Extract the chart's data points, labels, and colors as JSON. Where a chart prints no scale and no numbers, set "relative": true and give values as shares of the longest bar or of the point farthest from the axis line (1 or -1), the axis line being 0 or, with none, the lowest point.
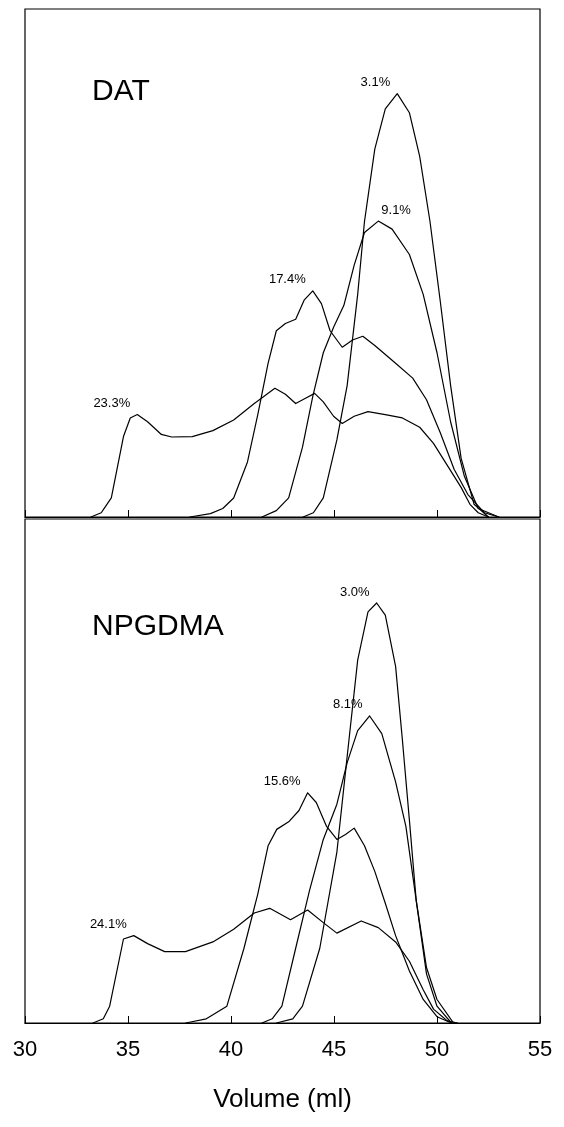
{
  "chart_data": [
    {
      "type": "line",
      "title": "DAT",
      "relative": true,
      "xlim": [
        30,
        55
      ],
      "xticks": [
        30,
        35,
        40,
        45,
        50,
        55
      ],
      "tick_labels": false,
      "grid": false,
      "legend": false,
      "marker": "none",
      "line_style": "solid",
      "series": [
        {
          "name": "23.3%",
          "color": "#000000",
          "x": [
            33.2,
            33.7,
            34.19,
            34.78,
            35.11,
            35.45,
            35.95,
            36.62,
            37.12,
            38.12,
            39.12,
            40.13,
            41.13,
            42.13,
            42.64,
            43.14,
            43.64,
            44.06,
            44.48,
            44.98,
            45.4,
            45.98,
            46.65,
            47.49,
            48.32,
            49.16,
            49.83,
            50.5,
            51.17,
            51.6,
            52.0,
            52.5
          ],
          "values": [
            0,
            0.01,
            0.045,
            0.19,
            0.234,
            0.242,
            0.225,
            0.195,
            0.189,
            0.19,
            0.204,
            0.229,
            0.268,
            0.304,
            0.29,
            0.268,
            0.281,
            0.292,
            0.272,
            0.238,
            0.221,
            0.238,
            0.249,
            0.242,
            0.234,
            0.212,
            0.174,
            0.122,
            0.07,
            0.03,
            0.01,
            0
          ]
        },
        {
          "name": "17.4%",
          "color": "#000000",
          "x": [
            38.0,
            39.0,
            39.6,
            40.13,
            40.8,
            41.3,
            41.8,
            42.2,
            42.64,
            43.14,
            43.56,
            43.97,
            44.39,
            44.81,
            45.4,
            45.9,
            46.4,
            46.98,
            47.99,
            48.82,
            49.49,
            50.16,
            50.83,
            51.5,
            52.3,
            53.0
          ],
          "values": [
            0,
            0.008,
            0.02,
            0.045,
            0.13,
            0.242,
            0.363,
            0.44,
            0.457,
            0.467,
            0.513,
            0.534,
            0.504,
            0.44,
            0.401,
            0.418,
            0.427,
            0.405,
            0.363,
            0.328,
            0.277,
            0.199,
            0.113,
            0.053,
            0.01,
            0
          ]
        },
        {
          "name": "9.1%",
          "color": "#000000",
          "x": [
            41.5,
            42.2,
            42.8,
            43.47,
            43.97,
            44.48,
            44.98,
            45.48,
            45.98,
            46.48,
            47.15,
            47.82,
            48.66,
            49.33,
            50.0,
            50.66,
            51.33,
            52.0,
            53.0
          ],
          "values": [
            0,
            0.015,
            0.045,
            0.165,
            0.285,
            0.388,
            0.448,
            0.5,
            0.595,
            0.672,
            0.699,
            0.68,
            0.62,
            0.526,
            0.388,
            0.225,
            0.096,
            0.02,
            0
          ]
        },
        {
          "name": "3.1%",
          "color": "#000000",
          "x": [
            43.5,
            44.0,
            44.48,
            45.14,
            45.64,
            46.15,
            46.48,
            46.98,
            47.49,
            48.07,
            48.66,
            49.16,
            49.66,
            50.16,
            50.66,
            51.17,
            51.8,
            52.5
          ],
          "values": [
            0,
            0.01,
            0.045,
            0.182,
            0.311,
            0.526,
            0.698,
            0.869,
            0.964,
            1.0,
            0.955,
            0.852,
            0.698,
            0.509,
            0.311,
            0.139,
            0.03,
            0
          ]
        }
      ]
    },
    {
      "type": "line",
      "title": "NPGDMA",
      "xlabel": "Volume (ml)",
      "relative": true,
      "xlim": [
        30,
        55
      ],
      "xticks": [
        30,
        35,
        40,
        45,
        50,
        55
      ],
      "tick_labels": "x",
      "grid": false,
      "legend": false,
      "marker": "none",
      "line_style": "solid",
      "series": [
        {
          "name": "24.1%",
          "color": "#000000",
          "x": [
            33.3,
            33.8,
            34.11,
            34.78,
            35.28,
            35.95,
            36.78,
            37.79,
            39.12,
            40.13,
            41.13,
            41.88,
            42.89,
            43.72,
            44.48,
            45.14,
            46.32,
            47.15,
            47.99,
            48.66,
            49.33,
            49.83,
            50.5,
            51.0
          ],
          "values": [
            0,
            0.01,
            0.04,
            0.2,
            0.208,
            0.189,
            0.17,
            0.17,
            0.193,
            0.223,
            0.262,
            0.273,
            0.246,
            0.269,
            0.239,
            0.214,
            0.243,
            0.227,
            0.193,
            0.147,
            0.079,
            0.033,
            0.005,
            0
          ]
        },
        {
          "name": "15.6%",
          "color": "#000000",
          "x": [
            37.8,
            38.8,
            39.8,
            40.63,
            41.3,
            41.8,
            42.22,
            42.8,
            43.3,
            43.72,
            44.14,
            44.64,
            45.14,
            45.56,
            45.98,
            46.48,
            46.98,
            47.49,
            47.99,
            48.66,
            49.33,
            50.0,
            50.7
          ],
          "values": [
            0,
            0.01,
            0.04,
            0.178,
            0.307,
            0.422,
            0.461,
            0.479,
            0.506,
            0.548,
            0.525,
            0.468,
            0.437,
            0.449,
            0.464,
            0.422,
            0.361,
            0.285,
            0.208,
            0.124,
            0.056,
            0.015,
            0
          ]
        },
        {
          "name": "8.1%",
          "color": "#000000",
          "x": [
            41.5,
            42.0,
            42.47,
            43.14,
            43.81,
            44.48,
            45.14,
            45.64,
            46.15,
            46.73,
            47.32,
            47.99,
            48.49,
            48.99,
            49.49,
            50.0,
            50.7
          ],
          "values": [
            0,
            0.01,
            0.04,
            0.178,
            0.315,
            0.437,
            0.521,
            0.62,
            0.696,
            0.731,
            0.689,
            0.574,
            0.468,
            0.292,
            0.117,
            0.04,
            0
          ]
        },
        {
          "name": "3.0%",
          "color": "#000000",
          "x": [
            42.2,
            43.0,
            43.47,
            44.31,
            45.14,
            45.64,
            46.15,
            46.65,
            47.07,
            47.49,
            47.99,
            48.32,
            48.66,
            48.99,
            49.49,
            50.0,
            50.8
          ],
          "values": [
            0,
            0.01,
            0.04,
            0.178,
            0.407,
            0.635,
            0.864,
            0.979,
            1.0,
            0.971,
            0.849,
            0.674,
            0.483,
            0.292,
            0.132,
            0.056,
            0
          ]
        }
      ]
    }
  ]
}
